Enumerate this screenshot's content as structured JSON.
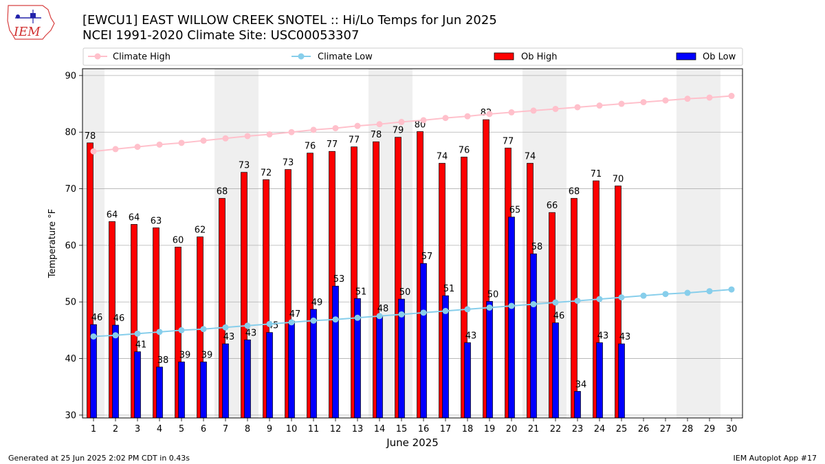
{
  "header": {
    "logo_text": "IEM",
    "title_line1": "[EWCU1] EAST WILLOW CREEK SNOTEL :: Hi/Lo Temps for Jun 2025",
    "title_line2": "NCEI 1991-2020 Climate Site: USC00053307"
  },
  "footer": {
    "left": "Generated at 25 Jun 2025 2:02 PM CDT in 0.43s",
    "right": "IEM Autoplot App #17"
  },
  "colors": {
    "ob_high": "#ff0000",
    "ob_low": "#0000ff",
    "climate_high": "#ffc0cb",
    "climate_low": "#87ceeb",
    "weekend_band": "#efefef",
    "grid": "#b0b0b0"
  },
  "chart_data": {
    "type": "bar",
    "xlabel": "June 2025",
    "ylabel": "Temperature °F",
    "ylim": [
      29.5,
      91.2
    ],
    "yticks": [
      30,
      40,
      50,
      60,
      70,
      80,
      90
    ],
    "grid": true,
    "legend_position": "top",
    "x": [
      1,
      2,
      3,
      4,
      5,
      6,
      7,
      8,
      9,
      10,
      11,
      12,
      13,
      14,
      15,
      16,
      17,
      18,
      19,
      20,
      21,
      22,
      23,
      24,
      25,
      26,
      27,
      28,
      29,
      30
    ],
    "weekend_bands": [
      [
        1,
        1
      ],
      [
        7,
        8
      ],
      [
        14,
        15
      ],
      [
        21,
        22
      ],
      [
        28,
        29
      ]
    ],
    "series": [
      {
        "name": "Ob High",
        "kind": "bar",
        "values": [
          78.1,
          64.2,
          63.7,
          63.1,
          59.7,
          61.5,
          68.3,
          72.9,
          71.6,
          73.4,
          76.3,
          76.6,
          77.4,
          78.3,
          79.1,
          80.1,
          74.5,
          75.6,
          82.2,
          77.2,
          74.5,
          65.8,
          68.3,
          71.4,
          70.5,
          null,
          null,
          null,
          null,
          null
        ],
        "labels": [
          "78",
          "64",
          "64",
          "63",
          "60",
          "62",
          "68",
          "73",
          "72",
          "73",
          "76",
          "77",
          "77",
          "78",
          "79",
          "80",
          "74",
          "76",
          "82",
          "77",
          "74",
          "66",
          "68",
          "71",
          "70",
          "",
          "",
          "",
          "",
          ""
        ]
      },
      {
        "name": "Ob Low",
        "kind": "bar",
        "values": [
          46.0,
          45.9,
          41.2,
          38.5,
          39.4,
          39.4,
          42.6,
          43.3,
          44.6,
          46.6,
          48.7,
          52.8,
          50.6,
          47.6,
          50.5,
          56.8,
          51.1,
          42.8,
          50.1,
          65.0,
          58.5,
          46.3,
          34.2,
          42.8,
          42.6,
          null,
          null,
          null,
          null,
          null
        ],
        "labels": [
          "46",
          "46",
          "41",
          "38",
          "39",
          "39",
          "43",
          "43",
          "45",
          "47",
          "49",
          "53",
          "51",
          "48",
          "50",
          "57",
          "51",
          "43",
          "50",
          "65",
          "58",
          "46",
          "34",
          "43",
          "43",
          "",
          "",
          "",
          "",
          ""
        ]
      },
      {
        "name": "Climate High",
        "kind": "line",
        "values": [
          76.6,
          77.0,
          77.4,
          77.8,
          78.1,
          78.5,
          78.9,
          79.3,
          79.6,
          80.0,
          80.4,
          80.7,
          81.1,
          81.4,
          81.8,
          82.1,
          82.5,
          82.8,
          83.2,
          83.5,
          83.8,
          84.1,
          84.4,
          84.7,
          85.0,
          85.3,
          85.6,
          85.9,
          86.1,
          86.4
        ]
      },
      {
        "name": "Climate Low",
        "kind": "line",
        "values": [
          43.9,
          44.1,
          44.4,
          44.7,
          45.0,
          45.2,
          45.5,
          45.8,
          46.1,
          46.4,
          46.7,
          46.9,
          47.2,
          47.5,
          47.8,
          48.1,
          48.4,
          48.7,
          49.0,
          49.3,
          49.6,
          49.9,
          50.2,
          50.5,
          50.8,
          51.1,
          51.4,
          51.6,
          51.9,
          52.2
        ]
      }
    ]
  }
}
